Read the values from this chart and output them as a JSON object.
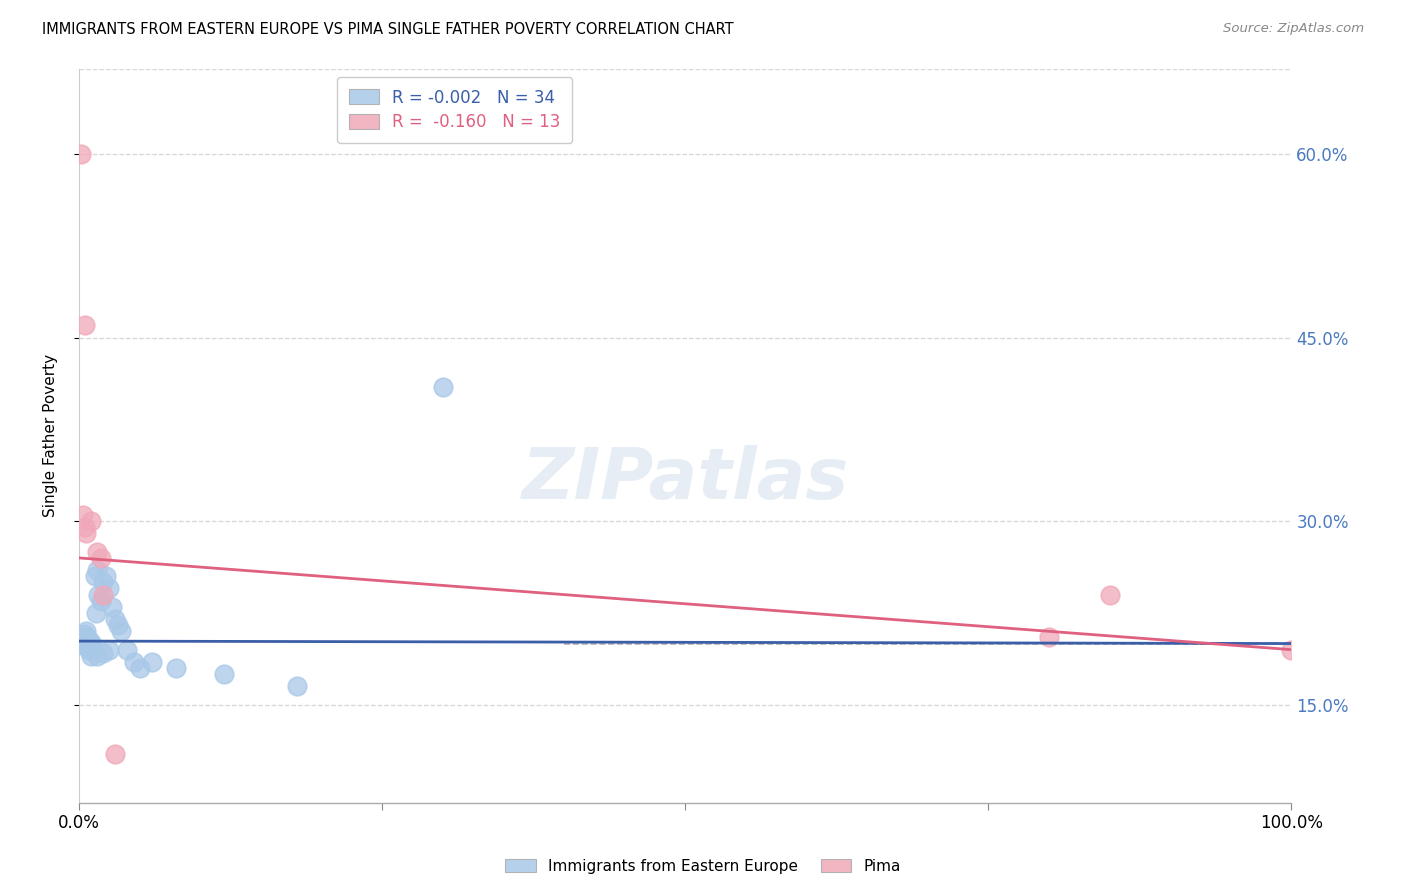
{
  "title": "IMMIGRANTS FROM EASTERN EUROPE VS PIMA SINGLE FATHER POVERTY CORRELATION CHART",
  "source": "Source: ZipAtlas.com",
  "ylabel": "Single Father Poverty",
  "legend_label1": "Immigrants from Eastern Europe",
  "legend_label2": "Pima",
  "r1": -0.002,
  "n1": 34,
  "r2": -0.16,
  "n2": 13,
  "color_blue": "#a8c8e8",
  "color_pink": "#f0a8b8",
  "trendline_blue": "#3a5fa8",
  "trendline_pink": "#e06080",
  "background_color": "#ffffff",
  "blue_points": [
    [
      0.2,
      20.5
    ],
    [
      0.3,
      20.0
    ],
    [
      0.4,
      20.8
    ],
    [
      0.5,
      19.8
    ],
    [
      0.6,
      21.0
    ],
    [
      0.7,
      20.5
    ],
    [
      0.8,
      19.5
    ],
    [
      0.9,
      20.2
    ],
    [
      1.0,
      19.8
    ],
    [
      1.1,
      20.0
    ],
    [
      1.3,
      25.5
    ],
    [
      1.4,
      22.5
    ],
    [
      1.5,
      26.0
    ],
    [
      1.6,
      24.0
    ],
    [
      1.8,
      23.5
    ],
    [
      2.0,
      25.0
    ],
    [
      2.2,
      25.5
    ],
    [
      2.5,
      24.5
    ],
    [
      2.7,
      23.0
    ],
    [
      3.0,
      22.0
    ],
    [
      3.2,
      21.5
    ],
    [
      1.0,
      19.0
    ],
    [
      1.5,
      19.0
    ],
    [
      2.0,
      19.2
    ],
    [
      2.5,
      19.5
    ],
    [
      3.5,
      21.0
    ],
    [
      4.0,
      19.5
    ],
    [
      4.5,
      18.5
    ],
    [
      5.0,
      18.0
    ],
    [
      6.0,
      18.5
    ],
    [
      8.0,
      18.0
    ],
    [
      12.0,
      17.5
    ],
    [
      18.0,
      16.5
    ],
    [
      30.0,
      41.0
    ]
  ],
  "pink_points": [
    [
      0.2,
      60.0
    ],
    [
      0.5,
      46.0
    ],
    [
      0.3,
      30.5
    ],
    [
      0.5,
      29.5
    ],
    [
      0.6,
      29.0
    ],
    [
      1.0,
      30.0
    ],
    [
      1.5,
      27.5
    ],
    [
      1.8,
      27.0
    ],
    [
      2.0,
      24.0
    ],
    [
      3.0,
      11.0
    ],
    [
      80.0,
      20.5
    ],
    [
      85.0,
      24.0
    ],
    [
      100.0,
      19.5
    ]
  ],
  "xlim": [
    0,
    100
  ],
  "ylim": [
    7,
    67
  ],
  "ytick_vals": [
    15.0,
    30.0,
    45.0,
    60.0
  ],
  "ytick_labels": [
    "15.0%",
    "30.0%",
    "45.0%",
    "60.0%"
  ],
  "grid_color": "#cccccc",
  "dashed_line_color": "#aaaaaa",
  "blue_trendline_y0": 20.2,
  "blue_trendline_y1": 20.0,
  "pink_trendline_y0": 27.0,
  "pink_trendline_y1": 19.5
}
